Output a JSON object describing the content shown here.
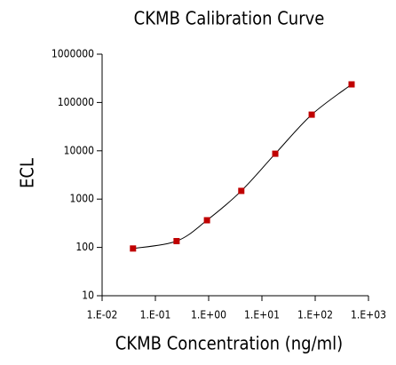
{
  "chart_data": {
    "type": "scatter",
    "title": "CKMB Calibration Curve",
    "x_label": "CKMB Concentration (ng/ml)",
    "y_label": "ECL",
    "x": [
      0.038,
      0.25,
      0.93,
      4.1,
      17.8,
      86,
      482
    ],
    "values": [
      95,
      135,
      365,
      1480,
      8700,
      56000,
      237000
    ],
    "color": "#c00000",
    "line_color": "#000000",
    "xscale": "log",
    "yscale": "log",
    "xlim": [
      0.01,
      1000
    ],
    "ylim": [
      10,
      1000000
    ],
    "xticks": [
      {
        "value": 0.01,
        "label": "1.E-02"
      },
      {
        "value": 0.1,
        "label": "1.E-01"
      },
      {
        "value": 1,
        "label": "1.E+00"
      },
      {
        "value": 10,
        "label": "1.E+01"
      },
      {
        "value": 100,
        "label": "1.E+02"
      },
      {
        "value": 1000,
        "label": "1.E+03"
      }
    ],
    "yticks": [
      10,
      100,
      1000,
      10000,
      100000,
      1000000
    ]
  }
}
